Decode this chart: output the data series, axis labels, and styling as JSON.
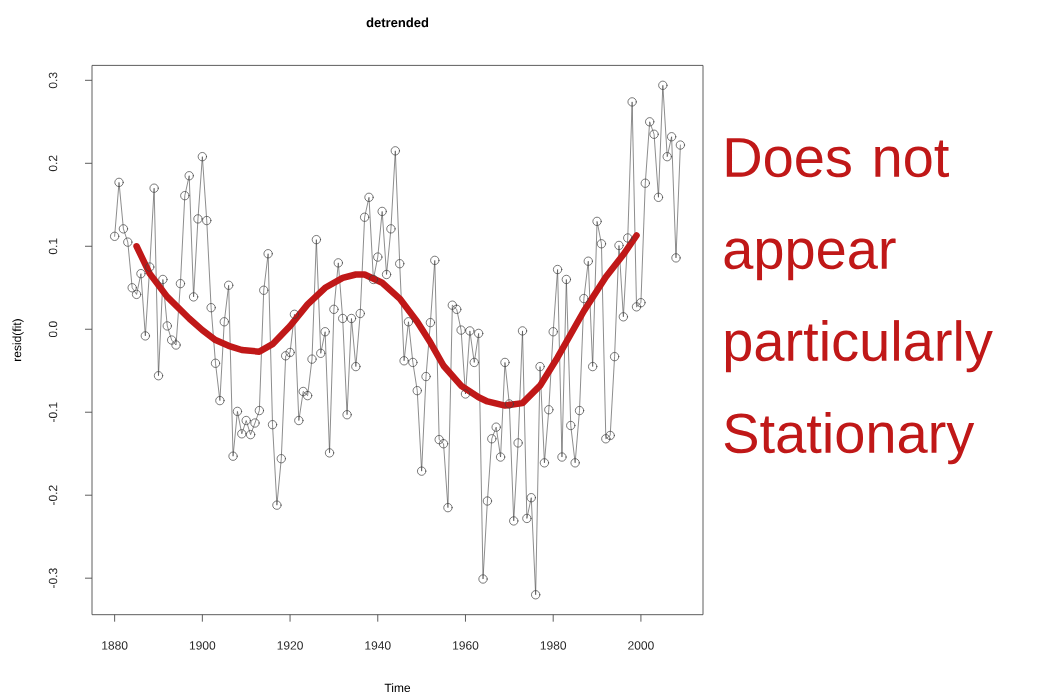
{
  "chart_data": {
    "type": "line",
    "title": "detrended",
    "xlabel": "Time",
    "ylabel": "resid(fit)",
    "x": [
      1880,
      1881,
      1882,
      1883,
      1884,
      1885,
      1886,
      1887,
      1888,
      1889,
      1890,
      1891,
      1892,
      1893,
      1894,
      1895,
      1896,
      1897,
      1898,
      1899,
      1900,
      1901,
      1902,
      1903,
      1904,
      1905,
      1906,
      1907,
      1908,
      1909,
      1910,
      1911,
      1912,
      1913,
      1914,
      1915,
      1916,
      1917,
      1918,
      1919,
      1920,
      1921,
      1922,
      1923,
      1924,
      1925,
      1926,
      1927,
      1928,
      1929,
      1930,
      1931,
      1932,
      1933,
      1934,
      1935,
      1936,
      1937,
      1938,
      1939,
      1940,
      1941,
      1942,
      1943,
      1944,
      1945,
      1946,
      1947,
      1948,
      1949,
      1950,
      1951,
      1952,
      1953,
      1954,
      1955,
      1956,
      1957,
      1958,
      1959,
      1960,
      1961,
      1962,
      1963,
      1964,
      1965,
      1966,
      1967,
      1968,
      1969,
      1970,
      1971,
      1972,
      1973,
      1974,
      1975,
      1976,
      1977,
      1978,
      1979,
      1980,
      1981,
      1982,
      1983,
      1984,
      1985,
      1986,
      1987,
      1988,
      1989,
      1990,
      1991,
      1992,
      1993,
      1994,
      1995,
      1996,
      1997,
      1998,
      1999,
      2000,
      2001,
      2002,
      2003,
      2004,
      2005,
      2006,
      2007,
      2008,
      2009
    ],
    "xlim": [
      1874.84,
      2014.16
    ],
    "ylim": [
      -0.344,
      0.318
    ],
    "xticks": [
      1880,
      1900,
      1920,
      1940,
      1960,
      1980,
      2000
    ],
    "yticks": [
      -0.3,
      -0.2,
      -0.1,
      {
        "value": 0,
        "label": "0.0"
      },
      0.1,
      0.2,
      0.3
    ],
    "series": [
      {
        "color": "#404040",
        "marker": "circle",
        "values": [
          0.112,
          0.177,
          0.121,
          0.105,
          0.05,
          0.042,
          0.067,
          -0.008,
          0.075,
          0.17,
          -0.056,
          0.06,
          0.004,
          -0.013,
          -0.019,
          0.055,
          0.161,
          0.185,
          0.039,
          0.133,
          0.208,
          0.131,
          0.026,
          -0.041,
          -0.086,
          0.009,
          0.053,
          -0.153,
          -0.099,
          -0.126,
          -0.11,
          -0.127,
          -0.113,
          -0.098,
          0.047,
          0.091,
          -0.115,
          -0.212,
          -0.156,
          -0.032,
          -0.028,
          0.018,
          -0.11,
          -0.075,
          -0.08,
          -0.036,
          0.108,
          -0.029,
          -0.003,
          -0.149,
          0.024,
          0.08,
          0.013,
          -0.103,
          0.013,
          -0.045,
          0.019,
          0.135,
          0.159,
          0.06,
          0.087,
          0.142,
          0.066,
          0.121,
          0.215,
          0.079,
          -0.038,
          0.009,
          -0.04,
          -0.074,
          -0.171,
          -0.057,
          0.008,
          0.083,
          -0.133,
          -0.138,
          -0.215,
          0.029,
          0.024,
          -0.001,
          -0.078,
          -0.002,
          -0.04,
          -0.005,
          -0.301,
          -0.207,
          -0.132,
          -0.118,
          -0.154,
          -0.04,
          -0.09,
          -0.231,
          -0.137,
          -0.002,
          -0.228,
          -0.203,
          -0.32,
          -0.045,
          -0.161,
          -0.097,
          -0.003,
          0.072,
          -0.154,
          0.06,
          -0.116,
          -0.161,
          -0.098,
          0.037,
          0.082,
          -0.045,
          0.13,
          0.103,
          -0.132,
          -0.128,
          -0.033,
          0.101,
          0.015,
          0.11,
          0.274,
          0.027,
          0.032,
          0.176,
          0.25,
          0.235,
          0.159,
          0.294,
          0.208,
          0.232,
          0.086,
          0.222
        ]
      },
      {
        "type": "line",
        "color": "#c01818",
        "marker": "none",
        "x": [
          1885,
          1888,
          1892,
          1897,
          1900,
          1903,
          1906,
          1909,
          1913,
          1916,
          1920,
          1924,
          1928,
          1932,
          1935,
          1937,
          1941,
          1945,
          1949,
          1952,
          1955,
          1959,
          1963,
          1965,
          1969,
          1973,
          1977,
          1981,
          1984,
          1987,
          1992,
          1996,
          1999
        ],
        "values": [
          0.1,
          0.067,
          0.039,
          0.013,
          -0.001,
          -0.013,
          -0.02,
          -0.025,
          -0.027,
          -0.018,
          0.004,
          0.03,
          0.05,
          0.062,
          0.066,
          0.066,
          0.056,
          0.037,
          0.009,
          -0.016,
          -0.044,
          -0.068,
          -0.082,
          -0.087,
          -0.092,
          -0.089,
          -0.068,
          -0.034,
          -0.006,
          0.022,
          0.063,
          0.09,
          0.113
        ]
      }
    ],
    "annotations": [
      "Does not appear particularly Stationary"
    ]
  }
}
